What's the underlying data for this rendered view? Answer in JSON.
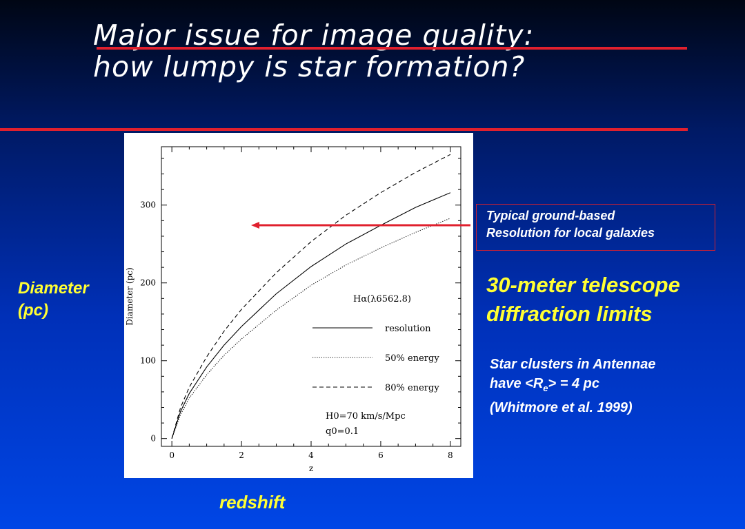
{
  "slide": {
    "title": "Major issue for image quality: how lumpy is star formation?",
    "ylabel_line1": "Diameter",
    "ylabel_line2": "(pc)",
    "xlabel": "redshift",
    "telescope_line1": "30-meter telescope",
    "telescope_line2": "diffraction limits",
    "box_line1": "Typical ground-based",
    "box_line2": "Resolution for local galaxies",
    "clusters_line1": "Star clusters in Antennae",
    "clusters_line2_pre": "have <R",
    "clusters_line2_sub": "e",
    "clusters_line2_post": "> = 4 pc",
    "clusters_line3": "(Whitmore et al. 1999)",
    "accent_color": "#e0202e",
    "text_accent_color": "#ffff33"
  },
  "chart_data": {
    "type": "line",
    "xlabel": "z",
    "ylabel": "Diameter (pc)",
    "xlim": [
      -0.3,
      8.3
    ],
    "ylim": [
      -10,
      375
    ],
    "x_ticks": [
      0,
      2,
      4,
      6,
      8
    ],
    "y_ticks": [
      0,
      100,
      200,
      300
    ],
    "annotation_line1": "Hα(λ6562.8)",
    "params_line1": "H0=70 km/s/Mpc",
    "params_line2": "q0=0.1",
    "reference_level": 272,
    "series": [
      {
        "name": "resolution",
        "dash": "solid",
        "x": [
          0,
          0.25,
          0.5,
          1,
          1.5,
          2,
          3,
          4,
          5,
          6,
          7,
          8
        ],
        "y": [
          0,
          35,
          58,
          92,
          120,
          144,
          186,
          221,
          250,
          274,
          297,
          316
        ]
      },
      {
        "name": "50% energy",
        "dash": "dotted",
        "x": [
          0,
          0.25,
          0.5,
          1,
          1.5,
          2,
          3,
          4,
          5,
          6,
          7,
          8
        ],
        "y": [
          0,
          31,
          52,
          82,
          107,
          128,
          165,
          197,
          223,
          245,
          265,
          283
        ]
      },
      {
        "name": "80% energy",
        "dash": "dashed",
        "x": [
          0,
          0.25,
          0.5,
          1,
          1.5,
          2,
          3,
          4,
          5,
          6,
          7,
          8
        ],
        "y": [
          0,
          40,
          66,
          105,
          138,
          166,
          213,
          253,
          287,
          316,
          342,
          365
        ]
      }
    ]
  }
}
